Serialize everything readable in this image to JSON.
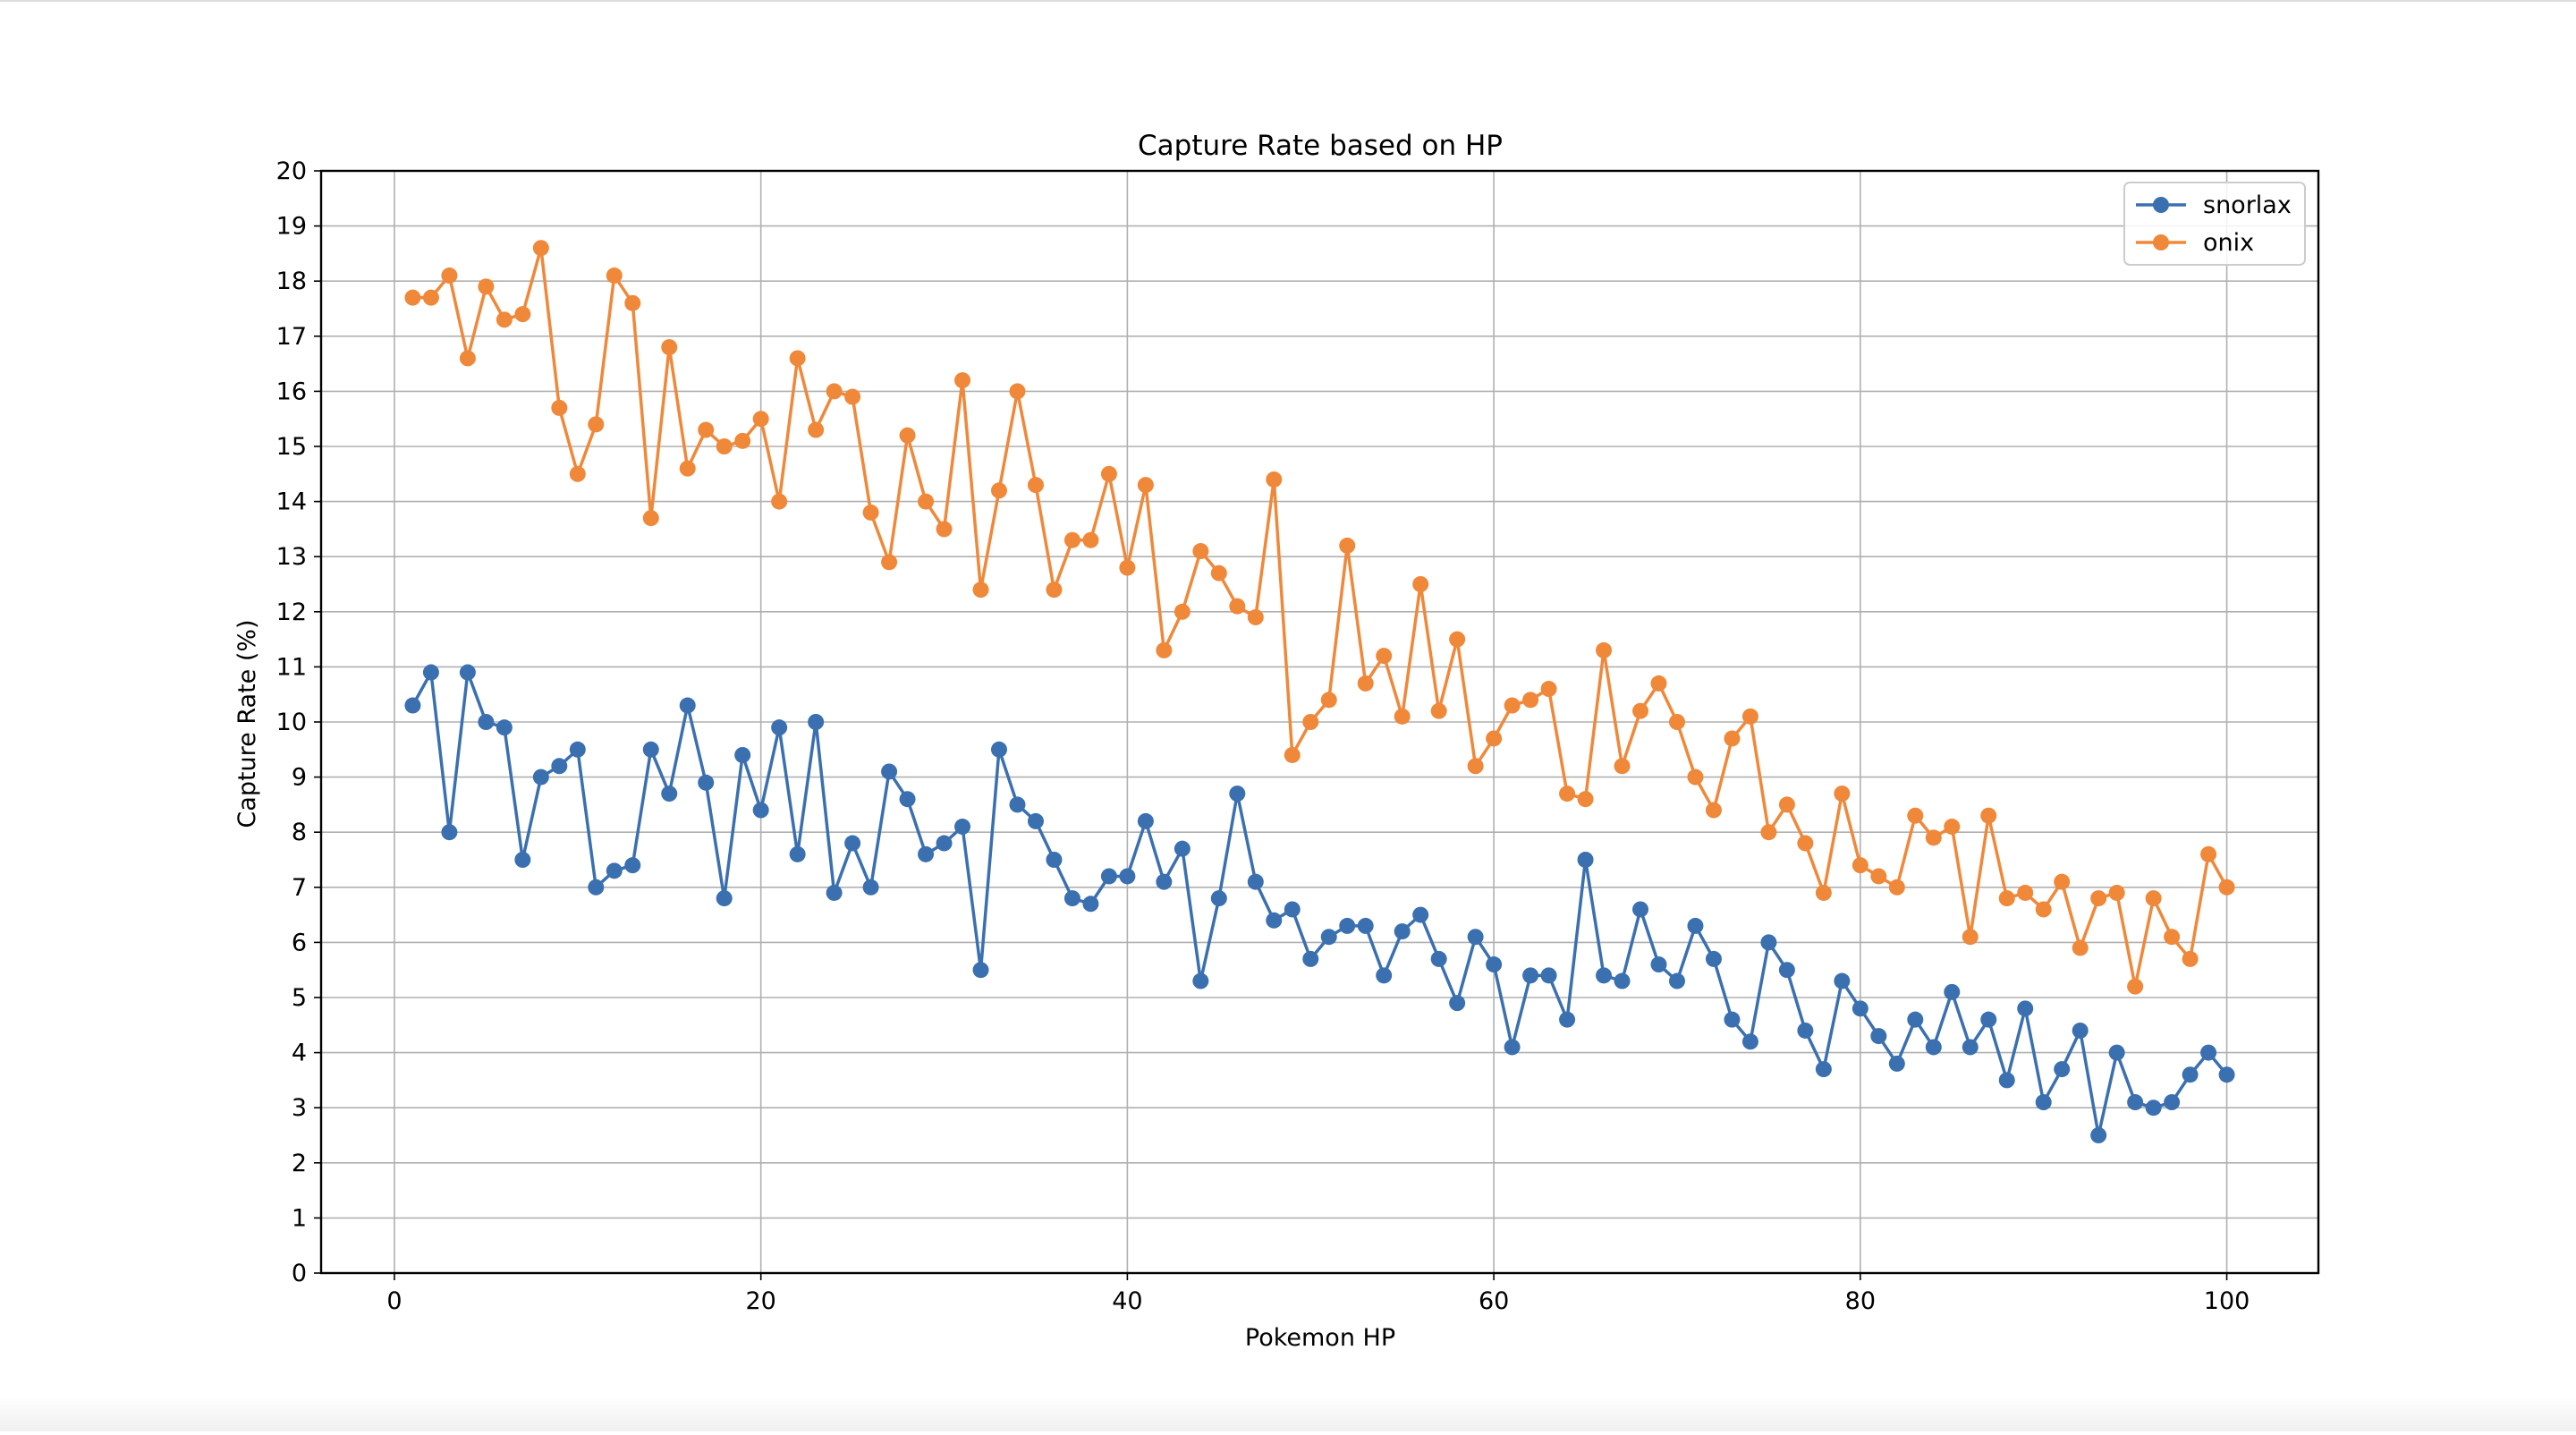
{
  "chart_data": {
    "type": "line",
    "title": "Capture Rate based on HP",
    "xlabel": "Pokemon HP",
    "ylabel": "Capture Rate (%)",
    "xlim": [
      -4,
      105
    ],
    "ylim": [
      0,
      20
    ],
    "xticks": [
      0,
      20,
      40,
      60,
      80,
      100
    ],
    "yticks": [
      0,
      1,
      2,
      3,
      4,
      5,
      6,
      7,
      8,
      9,
      10,
      11,
      12,
      13,
      14,
      15,
      16,
      17,
      18,
      19,
      20
    ],
    "grid": true,
    "legend_position": "upper right",
    "x": [
      1,
      2,
      3,
      4,
      5,
      6,
      7,
      8,
      9,
      10,
      11,
      12,
      13,
      14,
      15,
      16,
      17,
      18,
      19,
      20,
      21,
      22,
      23,
      24,
      25,
      26,
      27,
      28,
      29,
      30,
      31,
      32,
      33,
      34,
      35,
      36,
      37,
      38,
      39,
      40,
      41,
      42,
      43,
      44,
      45,
      46,
      47,
      48,
      49,
      50,
      51,
      52,
      53,
      54,
      55,
      56,
      57,
      58,
      59,
      60,
      61,
      62,
      63,
      64,
      65,
      66,
      67,
      68,
      69,
      70,
      71,
      72,
      73,
      74,
      75,
      76,
      77,
      78,
      79,
      80,
      81,
      82,
      83,
      84,
      85,
      86,
      87,
      88,
      89,
      90,
      91,
      92,
      93,
      94,
      95,
      96,
      97,
      98,
      99,
      100
    ],
    "series": [
      {
        "name": "snorlax",
        "color": "#3b70b0",
        "values": [
          10.3,
          10.9,
          8.0,
          10.9,
          10.0,
          9.9,
          7.5,
          9.0,
          9.2,
          9.5,
          7.0,
          7.3,
          7.4,
          9.5,
          8.7,
          10.3,
          8.9,
          6.8,
          9.4,
          8.4,
          9.9,
          7.6,
          10.0,
          6.9,
          7.8,
          7.0,
          9.1,
          8.6,
          7.6,
          7.8,
          8.1,
          5.5,
          9.5,
          8.5,
          8.2,
          7.5,
          6.8,
          6.7,
          7.2,
          7.2,
          8.2,
          7.1,
          7.7,
          5.3,
          6.8,
          8.7,
          7.1,
          6.4,
          6.6,
          5.7,
          6.1,
          6.3,
          6.3,
          5.4,
          6.2,
          6.5,
          5.7,
          4.9,
          6.1,
          5.6,
          4.1,
          5.4,
          5.4,
          4.6,
          7.5,
          5.4,
          5.3,
          6.6,
          5.6,
          5.3,
          6.3,
          5.7,
          4.6,
          4.2,
          6.0,
          5.5,
          4.4,
          3.7,
          5.3,
          4.8,
          4.3,
          3.8,
          4.6,
          4.1,
          5.1,
          4.1,
          4.6,
          3.5,
          4.8,
          3.1,
          3.7,
          4.4,
          2.5,
          4.0,
          3.1,
          3.0,
          3.1,
          3.6,
          4.0,
          3.6
        ]
      },
      {
        "name": "onix",
        "color": "#f0883a",
        "values": [
          17.7,
          17.7,
          18.1,
          16.6,
          17.9,
          17.3,
          17.4,
          18.6,
          15.7,
          14.5,
          15.4,
          18.1,
          17.6,
          13.7,
          16.8,
          14.6,
          15.3,
          15.0,
          15.1,
          15.5,
          14.0,
          16.6,
          15.3,
          16.0,
          15.9,
          13.8,
          12.9,
          15.2,
          14.0,
          13.5,
          16.2,
          12.4,
          14.2,
          16.0,
          14.3,
          12.4,
          13.3,
          13.3,
          14.5,
          12.8,
          14.3,
          11.3,
          12.0,
          13.1,
          12.7,
          12.1,
          11.9,
          14.4,
          9.4,
          10.0,
          10.4,
          13.2,
          10.7,
          11.2,
          10.1,
          12.5,
          10.2,
          11.5,
          9.2,
          9.7,
          10.3,
          10.4,
          10.6,
          8.7,
          8.6,
          11.3,
          9.2,
          10.2,
          10.7,
          10.0,
          9.0,
          8.4,
          9.7,
          10.1,
          8.0,
          8.5,
          7.8,
          6.9,
          8.7,
          7.4,
          7.2,
          7.0,
          8.3,
          7.9,
          8.1,
          6.1,
          8.3,
          6.8,
          6.9,
          6.6,
          7.1,
          5.9,
          6.8,
          6.9,
          5.2,
          6.8,
          6.1,
          5.7,
          7.6,
          7.0
        ]
      }
    ]
  }
}
